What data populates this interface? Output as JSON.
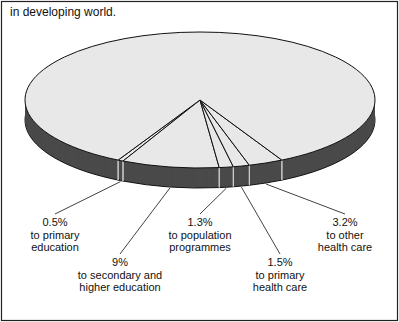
{
  "chart_data": {
    "type": "pie",
    "subtitle": "in developing world.",
    "categories": [
      "to primary education",
      "to secondary and higher education",
      "to population programmes",
      "to primary health care",
      "to other health care",
      null
    ],
    "values": [
      0.5,
      9,
      1.3,
      1.5,
      3.2,
      84.5
    ],
    "value_labels": [
      "0.5%",
      "9%",
      "1.3%",
      "1.5%",
      "3.2%",
      null
    ],
    "data_labels": true,
    "color": "#e8e8e8"
  }
}
